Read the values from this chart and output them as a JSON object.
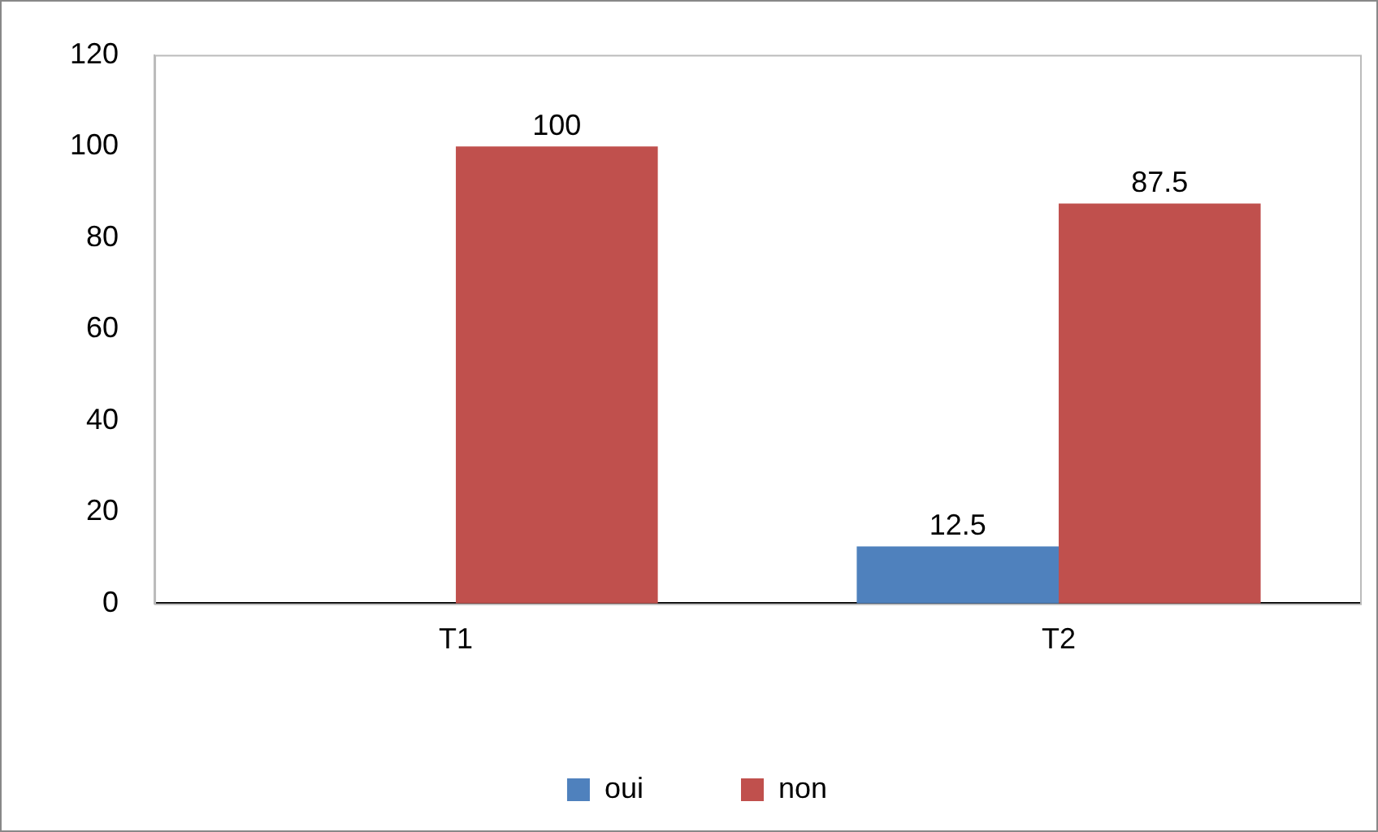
{
  "chart_data": {
    "type": "bar",
    "categories": [
      "T1",
      "T2"
    ],
    "series": [
      {
        "name": "oui",
        "color": "#4f81bd",
        "values": [
          0,
          12.5
        ],
        "value_labels": [
          null,
          "12.5"
        ]
      },
      {
        "name": "non",
        "color": "#c0504d",
        "values": [
          100,
          87.5
        ],
        "value_labels": [
          "100",
          "87.5"
        ]
      }
    ],
    "ylim": [
      0,
      120
    ],
    "yticks": [
      0,
      20,
      40,
      60,
      80,
      100,
      120
    ],
    "grid": false,
    "legend": "bottom"
  }
}
